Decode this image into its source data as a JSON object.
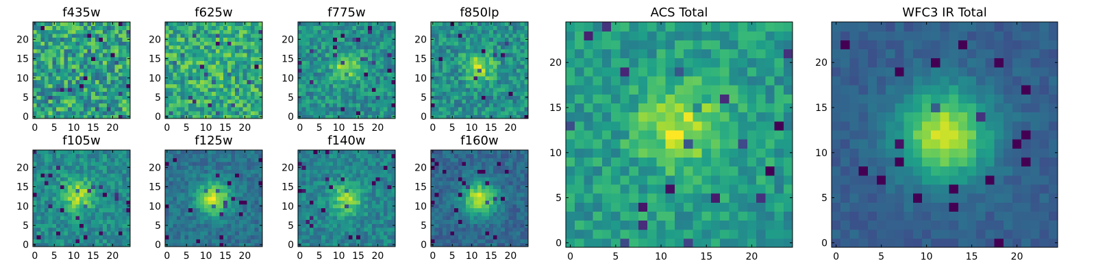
{
  "chart_data": [
    {
      "type": "heatmap",
      "title": "f435w",
      "grid_size": 25,
      "xticks": [
        0,
        5,
        10,
        15,
        20
      ],
      "yticks": [
        0,
        5,
        10,
        15,
        20
      ],
      "xlim": [
        -0.5,
        24.5
      ],
      "ylim": [
        -0.5,
        24.5
      ],
      "colormap": "viridis",
      "blob": {
        "center": [
          12,
          13
        ],
        "sigma": 3.0,
        "amplitude": 0.0
      },
      "noise": 0.5,
      "base": 0.58,
      "seed": 11
    },
    {
      "type": "heatmap",
      "title": "f625w",
      "grid_size": 25,
      "xticks": [
        0,
        5,
        10,
        15,
        20
      ],
      "yticks": [
        0,
        5,
        10,
        15,
        20
      ],
      "xlim": [
        -0.5,
        24.5
      ],
      "ylim": [
        -0.5,
        24.5
      ],
      "colormap": "viridis",
      "blob": {
        "center": [
          12,
          13
        ],
        "sigma": 3.0,
        "amplitude": 0.05
      },
      "noise": 0.42,
      "base": 0.62,
      "seed": 23
    },
    {
      "type": "heatmap",
      "title": "f775w",
      "grid_size": 25,
      "xticks": [
        0,
        5,
        10,
        15,
        20
      ],
      "yticks": [
        0,
        5,
        10,
        15,
        20
      ],
      "xlim": [
        -0.5,
        24.5
      ],
      "ylim": [
        -0.5,
        24.5
      ],
      "colormap": "viridis",
      "blob": {
        "center": [
          12,
          13
        ],
        "sigma": 2.6,
        "amplitude": 0.35
      },
      "noise": 0.32,
      "base": 0.5,
      "seed": 37
    },
    {
      "type": "heatmap",
      "title": "f850lp",
      "grid_size": 25,
      "xticks": [
        0,
        5,
        10,
        15,
        20
      ],
      "yticks": [
        0,
        5,
        10,
        15,
        20
      ],
      "xlim": [
        -0.5,
        24.5
      ],
      "ylim": [
        -0.5,
        24.5
      ],
      "colormap": "viridis",
      "blob": {
        "center": [
          12,
          13
        ],
        "sigma": 2.6,
        "amplitude": 0.35
      },
      "noise": 0.34,
      "base": 0.5,
      "seed": 41
    },
    {
      "type": "heatmap",
      "title": "f105w",
      "grid_size": 25,
      "xticks": [
        0,
        5,
        10,
        15,
        20
      ],
      "yticks": [
        0,
        5,
        10,
        15,
        20
      ],
      "xlim": [
        -0.5,
        24.5
      ],
      "ylim": [
        -0.5,
        24.5
      ],
      "colormap": "viridis",
      "blob": {
        "center": [
          11,
          13
        ],
        "sigma": 2.8,
        "amplitude": 0.42
      },
      "noise": 0.26,
      "base": 0.48,
      "seed": 53
    },
    {
      "type": "heatmap",
      "title": "f125w",
      "grid_size": 25,
      "xticks": [
        0,
        5,
        10,
        15,
        20
      ],
      "yticks": [
        0,
        5,
        10,
        15,
        20
      ],
      "xlim": [
        -0.5,
        24.5
      ],
      "ylim": [
        -0.5,
        24.5
      ],
      "colormap": "viridis",
      "blob": {
        "center": [
          12,
          12
        ],
        "sigma": 3.0,
        "amplitude": 0.55
      },
      "noise": 0.2,
      "base": 0.38,
      "seed": 67
    },
    {
      "type": "heatmap",
      "title": "f140w",
      "grid_size": 25,
      "xticks": [
        0,
        5,
        10,
        15,
        20
      ],
      "yticks": [
        0,
        5,
        10,
        15,
        20
      ],
      "xlim": [
        -0.5,
        24.5
      ],
      "ylim": [
        -0.5,
        24.5
      ],
      "colormap": "viridis",
      "blob": {
        "center": [
          12,
          12
        ],
        "sigma": 2.8,
        "amplitude": 0.42
      },
      "noise": 0.24,
      "base": 0.45,
      "seed": 79
    },
    {
      "type": "heatmap",
      "title": "f160w",
      "grid_size": 25,
      "xticks": [
        0,
        5,
        10,
        15,
        20
      ],
      "yticks": [
        0,
        5,
        10,
        15,
        20
      ],
      "xlim": [
        -0.5,
        24.5
      ],
      "ylim": [
        -0.5,
        24.5
      ],
      "colormap": "viridis",
      "blob": {
        "center": [
          12,
          12
        ],
        "sigma": 3.0,
        "amplitude": 0.58
      },
      "noise": 0.2,
      "base": 0.34,
      "seed": 83
    },
    {
      "type": "heatmap",
      "title": "ACS Total",
      "grid_size": 25,
      "xticks": [
        0,
        5,
        10,
        15,
        20
      ],
      "yticks": [
        0,
        5,
        10,
        15,
        20
      ],
      "xlim": [
        -0.5,
        24.5
      ],
      "ylim": [
        -0.5,
        24.5
      ],
      "colormap": "viridis",
      "blob": {
        "center": [
          12,
          13
        ],
        "sigma": 3.2,
        "amplitude": 0.36
      },
      "noise": 0.28,
      "base": 0.55,
      "seed": 97
    },
    {
      "type": "heatmap",
      "title": "WFC3 IR Total",
      "grid_size": 25,
      "xticks": [
        0,
        5,
        10,
        15,
        20
      ],
      "yticks": [
        0,
        5,
        10,
        15,
        20
      ],
      "xlim": [
        -0.5,
        24.5
      ],
      "ylim": [
        -0.5,
        24.5
      ],
      "colormap": "viridis",
      "blob": {
        "center": [
          12,
          12
        ],
        "sigma": 3.6,
        "amplitude": 0.62
      },
      "noise": 0.12,
      "base": 0.3,
      "seed": 101
    }
  ]
}
